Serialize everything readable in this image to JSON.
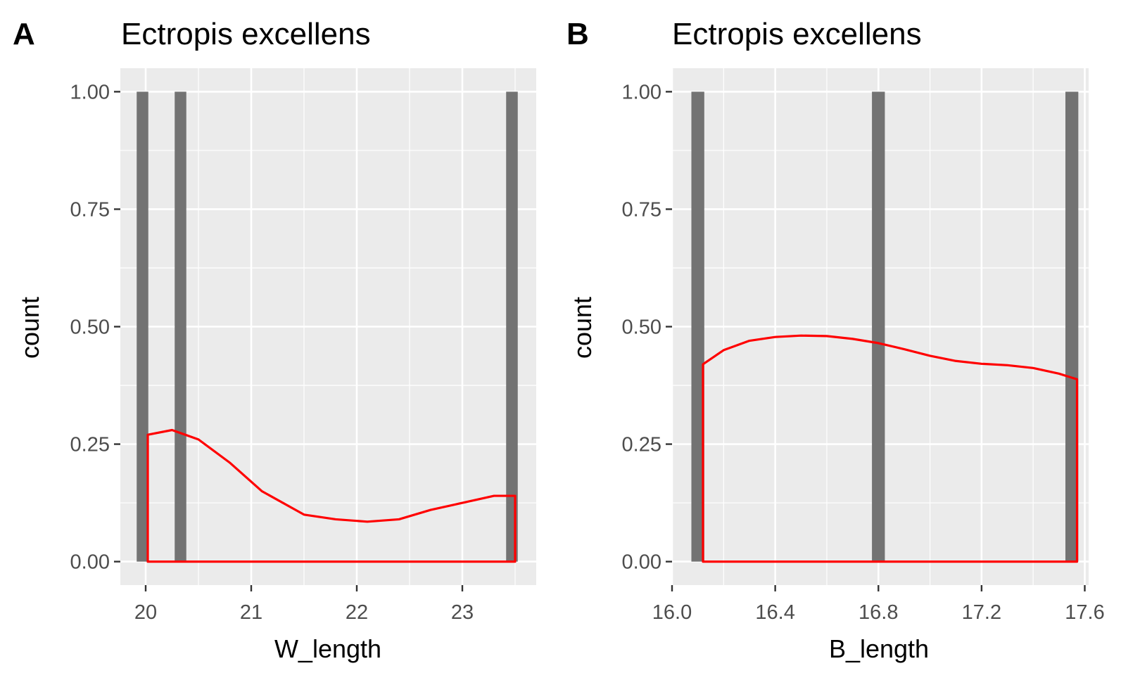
{
  "chart_data": [
    {
      "type": "bar",
      "tag": "A",
      "title": "Ectropis excellens",
      "xlabel": "W_length",
      "ylabel": "count",
      "xlim": [
        19.76,
        23.7
      ],
      "ylim": [
        -0.05,
        1.05
      ],
      "x_ticks": [
        20,
        21,
        22,
        23
      ],
      "x_tick_labels": [
        "20",
        "21",
        "22",
        "23"
      ],
      "y_ticks": [
        0,
        0.25,
        0.5,
        0.75,
        1
      ],
      "y_tick_labels": [
        "0.00",
        "0.25",
        "0.50",
        "0.75",
        "1.00"
      ],
      "grid": true,
      "bar_color": "#737373",
      "bars": [
        {
          "x": 19.97,
          "count": 1
        },
        {
          "x": 20.33,
          "count": 1
        },
        {
          "x": 23.47,
          "count": 1
        }
      ],
      "bar_width": 0.11,
      "density_color": "#ff0000",
      "density": {
        "x": [
          20.02,
          20.25,
          20.5,
          20.8,
          21.1,
          21.5,
          21.8,
          22.1,
          22.4,
          22.7,
          23.0,
          23.3,
          23.5
        ],
        "y": [
          0.27,
          0.28,
          0.26,
          0.21,
          0.15,
          0.1,
          0.09,
          0.085,
          0.09,
          0.11,
          0.125,
          0.14,
          0.14
        ]
      }
    },
    {
      "type": "bar",
      "tag": "B",
      "title": "Ectropis excellens",
      "xlabel": "B_length",
      "ylabel": "count",
      "xlim": [
        16.0,
        17.615
      ],
      "ylim": [
        -0.05,
        1.05
      ],
      "x_ticks": [
        16.0,
        16.4,
        16.8,
        17.2,
        17.6
      ],
      "x_tick_labels": [
        "16.0",
        "16.4",
        "16.8",
        "17.2",
        "17.6"
      ],
      "y_ticks": [
        0,
        0.25,
        0.5,
        0.75,
        1
      ],
      "y_tick_labels": [
        "0.00",
        "0.25",
        "0.50",
        "0.75",
        "1.00"
      ],
      "grid": true,
      "bar_color": "#737373",
      "bars": [
        {
          "x": 16.1,
          "count": 1
        },
        {
          "x": 16.8,
          "count": 1
        },
        {
          "x": 17.55,
          "count": 1
        }
      ],
      "bar_width": 0.05,
      "density_color": "#ff0000",
      "density": {
        "x": [
          16.12,
          16.2,
          16.3,
          16.4,
          16.5,
          16.6,
          16.7,
          16.8,
          16.9,
          17.0,
          17.1,
          17.2,
          17.3,
          17.4,
          17.5,
          17.57
        ],
        "y": [
          0.42,
          0.45,
          0.47,
          0.478,
          0.481,
          0.48,
          0.474,
          0.465,
          0.452,
          0.438,
          0.427,
          0.421,
          0.418,
          0.412,
          0.4,
          0.388
        ]
      }
    }
  ]
}
